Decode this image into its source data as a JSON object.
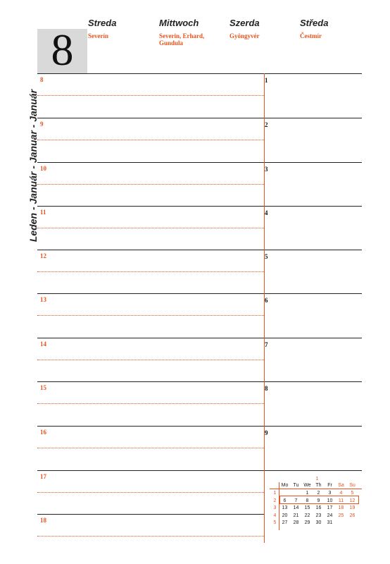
{
  "date": {
    "day_number": "8"
  },
  "side_label": "Leden - Január - Januar - Január",
  "days": [
    {
      "name": "Streda",
      "names": "Severín"
    },
    {
      "name": "Mittwoch",
      "names": "Severin, Erhard,\nGundula"
    },
    {
      "name": "Szerda",
      "names": "Gyöngyvér"
    },
    {
      "name": "Středa",
      "names": "Čestmír"
    }
  ],
  "hours": [
    "8",
    "9",
    "10",
    "11",
    "12",
    "13",
    "14",
    "15",
    "16",
    "17",
    "18"
  ],
  "right_numbers": [
    "1",
    "2",
    "3",
    "4",
    "5",
    "6",
    "7",
    "8",
    "9"
  ],
  "calendar": {
    "month_num": "1",
    "headers": [
      "Mo",
      "Tu",
      "We",
      "Th",
      "Fr",
      "Sa",
      "Su"
    ],
    "weeks": [
      "1",
      "2",
      "3",
      "4",
      "5"
    ],
    "rows": [
      [
        "",
        "",
        "1",
        "2",
        "3",
        "4",
        "5"
      ],
      [
        "6",
        "7",
        "8",
        "9",
        "10",
        "11",
        "12"
      ],
      [
        "13",
        "14",
        "15",
        "16",
        "17",
        "18",
        "19"
      ],
      [
        "20",
        "21",
        "22",
        "23",
        "24",
        "25",
        "26"
      ],
      [
        "27",
        "28",
        "29",
        "30",
        "31",
        "",
        ""
      ]
    ]
  },
  "colors": {
    "accent": "#e8541f",
    "text": "#222222",
    "date_box": "#d9d9d9"
  }
}
